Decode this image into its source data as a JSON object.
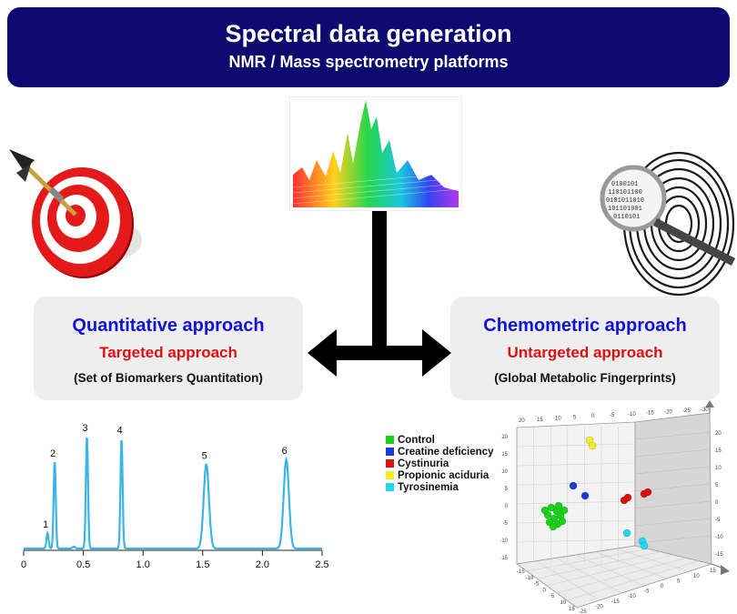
{
  "banner": {
    "title": "Spectral data generation",
    "subtitle": "NMR / Mass spectrometry platforms"
  },
  "left_panel": {
    "heading": "Quantitative approach",
    "subheading": "Targeted approach",
    "note": "(Set of Biomarkers Quantitation)",
    "icon": "target-dart-icon"
  },
  "right_panel": {
    "heading": "Chemometric approach",
    "subheading": "Untargeted approach",
    "note": "(Global Metabolic Fingerprints)",
    "icon": "fingerprint-magnifier-icon"
  },
  "center_image": "3d-spectra-icon",
  "colors": {
    "banner": "#0c0a6e",
    "heading": "#1212d8",
    "subheading": "#e01010",
    "chromatogram": "#3cb4e6"
  },
  "chart_data": [
    {
      "type": "line",
      "x_ticks": [
        "0",
        "0.5",
        "1.0",
        "1.5",
        "2.0",
        "2.5"
      ],
      "xlim": [
        0,
        2.5
      ],
      "peaks": [
        {
          "label": "1",
          "x": 0.2,
          "height": 0.12
        },
        {
          "label": "2",
          "x": 0.26,
          "height": 0.68
        },
        {
          "label": "3",
          "x": 0.53,
          "height": 0.88
        },
        {
          "label": "4",
          "x": 0.82,
          "height": 0.86
        },
        {
          "label": "5",
          "x": 1.53,
          "height": 0.66
        },
        {
          "label": "6",
          "x": 2.2,
          "height": 0.7
        }
      ]
    },
    {
      "type": "scatter",
      "legend": [
        {
          "name": "Control",
          "color": "#19d219"
        },
        {
          "name": "Creatine deficiency",
          "color": "#1a3ad8"
        },
        {
          "name": "Cystinuria",
          "color": "#e00e0e"
        },
        {
          "name": "Propionic aciduria",
          "color": "#f2ee20"
        },
        {
          "name": "Tyrosinemia",
          "color": "#22d6f0"
        }
      ],
      "back_ticks": [
        "20",
        "15",
        "10",
        "5",
        "0",
        "-5",
        "-10",
        "-15",
        "-20",
        "-25",
        "-30"
      ],
      "left_ticks": [
        "20",
        "15",
        "10",
        "5",
        "0",
        "-5",
        "-10",
        "-15"
      ],
      "right_ticks": [
        "20",
        "15",
        "10",
        "5",
        "0",
        "-5",
        "-10",
        "-15"
      ],
      "floor_ticks": [
        "-15",
        "-10",
        "-5",
        "0",
        "5",
        "10",
        "15",
        "-25",
        "-20",
        "-15",
        "-10",
        "-5",
        "0",
        "5",
        "10",
        "15"
      ]
    }
  ]
}
